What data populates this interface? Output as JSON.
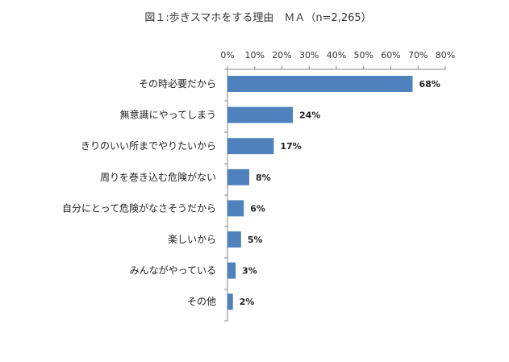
{
  "chart_data": {
    "type": "bar",
    "orientation": "horizontal",
    "title": "図１:歩きスマホをする理由　ＭＡ（n=2,265）",
    "xlabel": "",
    "ylabel": "",
    "xlim": [
      0,
      80
    ],
    "ticks": [
      "0%",
      "10%",
      "20%",
      "30%",
      "40%",
      "50%",
      "60%",
      "70%",
      "80%"
    ],
    "tick_values": [
      0,
      10,
      20,
      30,
      40,
      50,
      60,
      70,
      80
    ],
    "categories": [
      "その時必要だから",
      "無意識にやってしまう",
      "きりのいい所までやりたいから",
      "周りを巻き込む危険がない",
      "自分にとって危険がなさそうだから",
      "楽しいから",
      "みんながやっている",
      "その他"
    ],
    "values": [
      68,
      24,
      17,
      8,
      6,
      5,
      3,
      2
    ],
    "data_labels": [
      "68%",
      "24%",
      "17%",
      "8%",
      "6%",
      "5%",
      "3%",
      "2%"
    ],
    "bar_color": "#4f81bd",
    "axis_color": "#868686",
    "grid": false,
    "legend": "none"
  }
}
